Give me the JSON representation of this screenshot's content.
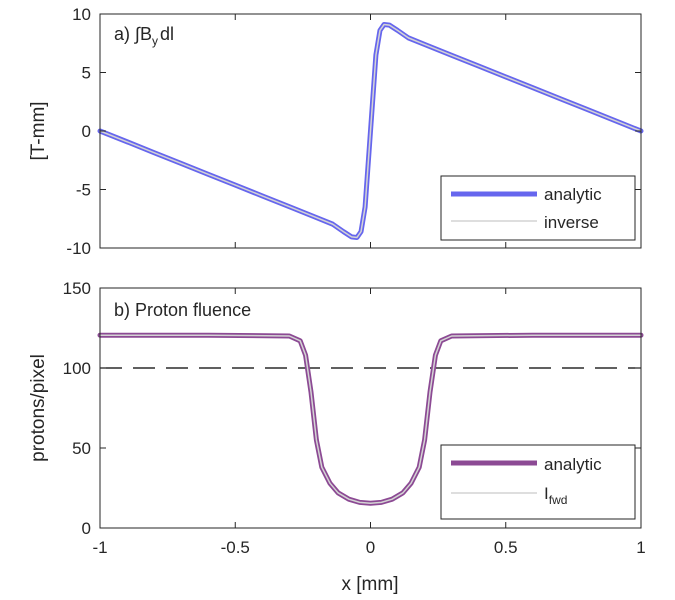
{
  "chart_data": [
    {
      "type": "line",
      "panel": "a",
      "title_prefix": "a) ",
      "title_math": "∫B",
      "title_sub": "y",
      "title_suffix": "dl",
      "xlabel": "",
      "ylabel": "[T-mm]",
      "xlim": [
        -1,
        1
      ],
      "ylim": [
        -10,
        10
      ],
      "yticks": [
        -10,
        -5,
        0,
        5,
        10
      ],
      "ytick_labels": [
        "-10",
        "-5",
        "0",
        "5",
        "10"
      ],
      "grid": false,
      "legend_position": "bottom-right",
      "series": [
        {
          "name": "analytic",
          "label": "analytic",
          "color": "#6666ee",
          "style": "thick",
          "x": [
            -1.0,
            -0.9,
            -0.8,
            -0.7,
            -0.6,
            -0.5,
            -0.4,
            -0.3,
            -0.2,
            -0.14,
            -0.1,
            -0.07,
            -0.05,
            -0.035,
            -0.02,
            0.0,
            0.02,
            0.035,
            0.05,
            0.07,
            0.1,
            0.14,
            0.2,
            0.3,
            0.4,
            0.5,
            0.6,
            0.7,
            0.8,
            0.9,
            1.0
          ],
          "y": [
            0.0,
            -0.92,
            -1.85,
            -2.77,
            -3.7,
            -4.62,
            -5.55,
            -6.47,
            -7.4,
            -7.96,
            -8.6,
            -9.05,
            -9.1,
            -8.6,
            -6.5,
            0.0,
            6.5,
            8.6,
            9.1,
            9.05,
            8.6,
            7.96,
            7.4,
            6.47,
            5.55,
            4.62,
            3.7,
            2.77,
            1.85,
            0.92,
            0.0
          ]
        },
        {
          "name": "inverse",
          "label": "inverse",
          "color": "#d4d4d4",
          "style": "thin",
          "x": [
            -1.0,
            -0.9,
            -0.8,
            -0.7,
            -0.6,
            -0.5,
            -0.4,
            -0.3,
            -0.2,
            -0.14,
            -0.1,
            -0.07,
            -0.05,
            -0.035,
            -0.02,
            0.0,
            0.02,
            0.035,
            0.05,
            0.07,
            0.1,
            0.14,
            0.2,
            0.3,
            0.4,
            0.5,
            0.6,
            0.7,
            0.8,
            0.9,
            1.0
          ],
          "y": [
            0.0,
            -0.92,
            -1.85,
            -2.77,
            -3.7,
            -4.62,
            -5.55,
            -6.47,
            -7.4,
            -7.96,
            -8.6,
            -9.05,
            -9.1,
            -8.6,
            -6.5,
            0.0,
            6.5,
            8.6,
            9.1,
            9.05,
            8.6,
            7.96,
            7.4,
            6.47,
            5.55,
            4.62,
            3.7,
            2.77,
            1.85,
            0.92,
            0.0
          ]
        }
      ]
    },
    {
      "type": "line",
      "panel": "b",
      "title_prefix": "b) ",
      "title_math": "",
      "title_sub": "",
      "title_suffix": "Proton fluence",
      "xlabel": "x [mm]",
      "ylabel": "protons/pixel",
      "xlim": [
        -1,
        1
      ],
      "ylim": [
        0,
        150
      ],
      "xticks": [
        -1,
        -0.5,
        0,
        0.5,
        1
      ],
      "xtick_labels": [
        "-1",
        "-0.5",
        "0",
        "0.5",
        "1"
      ],
      "yticks": [
        0,
        50,
        100,
        150
      ],
      "ytick_labels": [
        "0",
        "50",
        "100",
        "150"
      ],
      "grid": false,
      "legend_position": "bottom-right",
      "reference_line": {
        "y": 100,
        "style": "dashed",
        "color": "#000000"
      },
      "series": [
        {
          "name": "analytic",
          "label": "analytic",
          "color": "#8c4a94",
          "style": "thick",
          "x": [
            -1.0,
            -0.6,
            -0.3,
            -0.26,
            -0.24,
            -0.22,
            -0.2,
            -0.18,
            -0.15,
            -0.12,
            -0.08,
            -0.04,
            0.0,
            0.04,
            0.08,
            0.12,
            0.15,
            0.18,
            0.2,
            0.22,
            0.24,
            0.26,
            0.3,
            0.6,
            1.0
          ],
          "y": [
            120.5,
            120.5,
            120.0,
            117.0,
            108.0,
            85.0,
            55.0,
            38.0,
            28.0,
            22.0,
            18.0,
            16.0,
            15.5,
            16.0,
            18.0,
            22.0,
            28.0,
            38.0,
            55.0,
            85.0,
            108.0,
            117.0,
            120.0,
            120.5,
            120.5
          ]
        },
        {
          "name": "I_fwd",
          "label": "I",
          "label_sub": "fwd",
          "color": "#d4d4d4",
          "style": "thin",
          "x": [
            -1.0,
            -0.6,
            -0.3,
            -0.26,
            -0.24,
            -0.22,
            -0.2,
            -0.18,
            -0.15,
            -0.12,
            -0.08,
            -0.04,
            0.0,
            0.04,
            0.08,
            0.12,
            0.15,
            0.18,
            0.2,
            0.22,
            0.24,
            0.26,
            0.3,
            0.6,
            1.0
          ],
          "y": [
            120.5,
            120.5,
            120.0,
            117.0,
            108.0,
            85.0,
            55.0,
            38.0,
            28.0,
            22.0,
            18.0,
            16.0,
            15.5,
            16.0,
            18.0,
            22.0,
            28.0,
            38.0,
            55.0,
            85.0,
            108.0,
            117.0,
            120.0,
            120.5,
            120.5
          ]
        }
      ]
    }
  ]
}
